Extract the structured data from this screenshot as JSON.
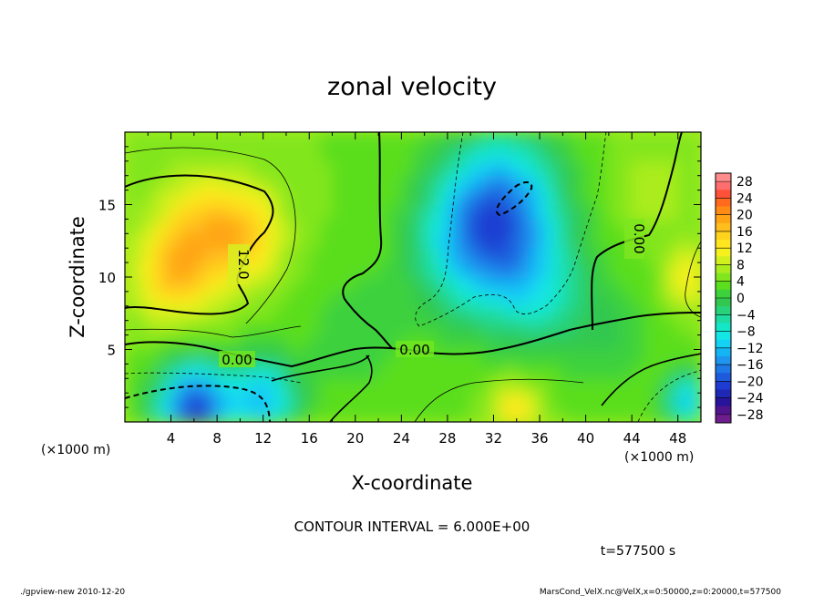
{
  "chart_data": {
    "type": "heatmap",
    "title": "zonal velocity",
    "xlabel": "X-coordinate",
    "ylabel": "Z-coordinate",
    "x_unit_left": "(×1000 m)",
    "x_unit_right": "(×1000 m)",
    "xlim": [
      0,
      50
    ],
    "ylim": [
      0,
      20
    ],
    "x_ticks": [
      4,
      8,
      12,
      16,
      20,
      24,
      28,
      32,
      36,
      40,
      44,
      48
    ],
    "y_ticks": [
      5,
      10,
      15
    ],
    "colorbar_labels": [
      "28",
      "24",
      "20",
      "16",
      "12",
      "8",
      "4",
      "0",
      "−4",
      "−8",
      "−12",
      "−16",
      "−20",
      "−24",
      "−28"
    ],
    "colorbar_levels": [
      30,
      28,
      26,
      24,
      22,
      20,
      18,
      16,
      14,
      12,
      10,
      8,
      6,
      4,
      2,
      0,
      -2,
      -4,
      -6,
      -8,
      -10,
      -12,
      -14,
      -16,
      -18,
      -20,
      -22,
      -24,
      -26,
      -28,
      -30
    ],
    "colorbar_colors": [
      "#ff8c8c",
      "#ff6e6e",
      "#ff5038",
      "#ff6a1e",
      "#ff8a14",
      "#ffa414",
      "#ffbd1e",
      "#ffd21e",
      "#ffe61e",
      "#f5f01e",
      "#d2f01e",
      "#aaec1e",
      "#82e61e",
      "#5ade1e",
      "#3cd23c",
      "#32c850",
      "#28d278",
      "#1edca0",
      "#14e6c8",
      "#14e6e6",
      "#14d2f5",
      "#14b4f5",
      "#1e96f0",
      "#1e78e6",
      "#1e5adc",
      "#1e3cd2",
      "#1e28b4",
      "#28149b",
      "#50148c",
      "#6e1e8c"
    ],
    "contour_labels": [
      "12.0",
      "0.00",
      "0.00",
      "0.00"
    ],
    "contour_interval": "CONTOUR INTERVAL = 6.000E+00",
    "time_label": "t=577500 s",
    "footer_left": "./gpview-new  2010-12-20",
    "footer_right": "MarsCond_VelX.nc@VelX,x=0:50000,z=0:20000,t=577500",
    "field_centers": [
      {
        "x": 7,
        "z": 13,
        "v": 16,
        "s": 4
      },
      {
        "x": 4,
        "z": 10,
        "v": 14,
        "s": 3
      },
      {
        "x": 11,
        "z": 13,
        "v": 12,
        "s": 3
      },
      {
        "x": 33,
        "z": 15,
        "v": -13,
        "s": 5
      },
      {
        "x": 30,
        "z": 12,
        "v": -9,
        "s": 5
      },
      {
        "x": 36,
        "z": 9,
        "v": -5,
        "s": 4
      },
      {
        "x": 6,
        "z": 1,
        "v": -21,
        "s": 3
      },
      {
        "x": 12,
        "z": 1.5,
        "v": -12,
        "s": 3
      },
      {
        "x": 34,
        "z": 0.8,
        "v": 14,
        "s": 2
      },
      {
        "x": 49,
        "z": 10,
        "v": 12,
        "s": 2
      },
      {
        "x": 49,
        "z": 1.5,
        "v": -12,
        "s": 2
      },
      {
        "x": 46,
        "z": 16,
        "v": 8,
        "s": 3
      },
      {
        "x": 20,
        "z": 6,
        "v": 0,
        "s": 4
      },
      {
        "x": 42,
        "z": 6,
        "v": 0,
        "s": 4
      }
    ]
  }
}
